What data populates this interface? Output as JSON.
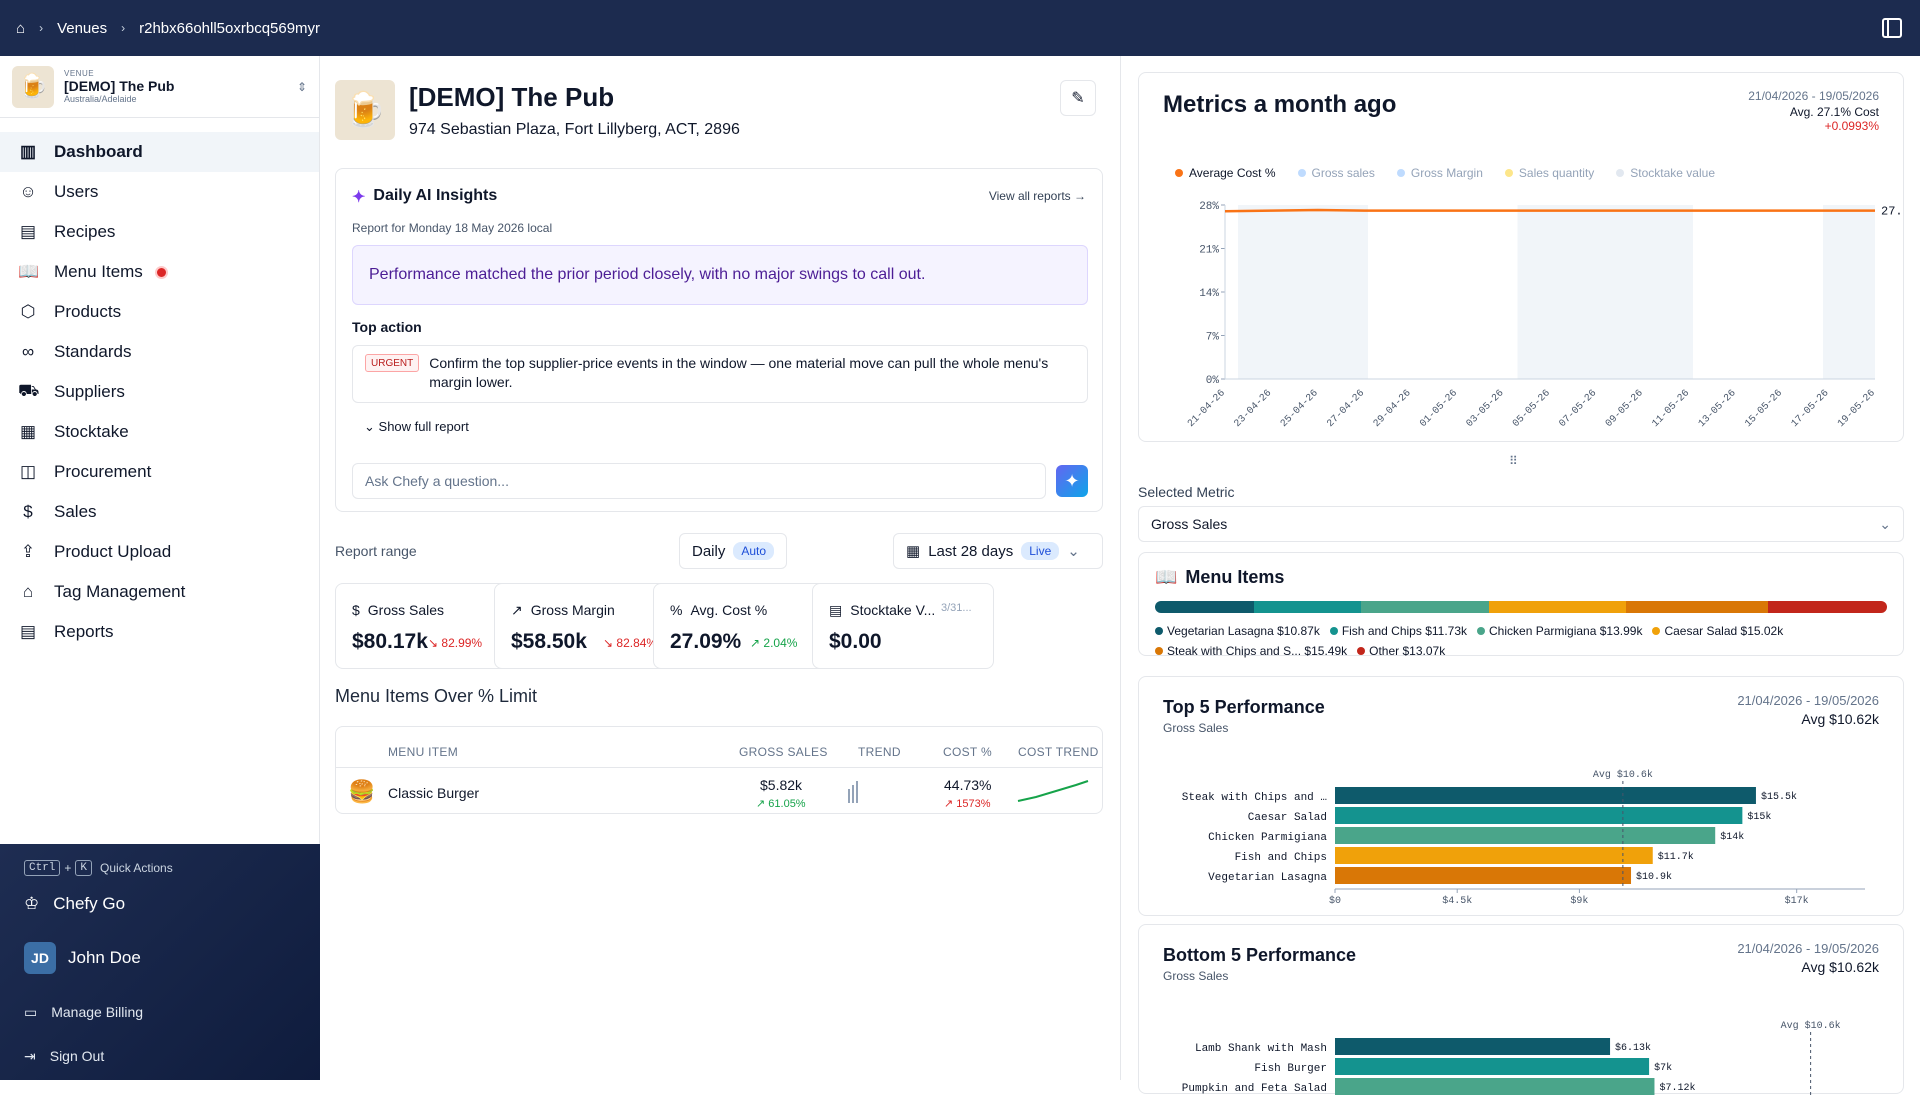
{
  "topbar": {
    "crumb_venues": "Venues",
    "crumb_id": "r2hbx66ohll5oxrbcq569myr"
  },
  "venue": {
    "label": "VENUE",
    "name": "[DEMO] The Pub",
    "location": "Australia/Adelaide"
  },
  "nav": [
    {
      "label": "Dashboard",
      "icon": "bar-chart-icon"
    },
    {
      "label": "Users",
      "icon": "user-icon"
    },
    {
      "label": "Recipes",
      "icon": "book-icon"
    },
    {
      "label": "Menu Items",
      "icon": "open-book-icon"
    },
    {
      "label": "Products",
      "icon": "box-icon"
    },
    {
      "label": "Standards",
      "icon": "link-icon"
    },
    {
      "label": "Suppliers",
      "icon": "truck-icon"
    },
    {
      "label": "Stocktake",
      "icon": "clipboard-icon"
    },
    {
      "label": "Procurement",
      "icon": "shopping-bag-icon"
    },
    {
      "label": "Sales",
      "icon": "dollar-icon"
    },
    {
      "label": "Product Upload",
      "icon": "file-upload-icon"
    },
    {
      "label": "Tag Management",
      "icon": "tag-icon"
    },
    {
      "label": "Reports",
      "icon": "report-icon"
    }
  ],
  "sidebar_bottom": {
    "kbd1": "Ctrl",
    "plus": "+",
    "kbd2": "K",
    "quick_actions": "Quick Actions",
    "chefy_go": "Chefy Go",
    "user_initials": "JD",
    "user_name": "John Doe",
    "billing": "Manage Billing",
    "signout": "Sign Out"
  },
  "header": {
    "title": "[DEMO] The Pub",
    "address": "974 Sebastian Plaza, Fort Lillyberg, ACT, 2896"
  },
  "ai": {
    "title": "Daily AI Insights",
    "view_all": "View all reports →",
    "report_for": "Report for Monday 18 May 2026 local",
    "summary": "Performance matched the prior period closely, with no major swings to call out.",
    "top_action_label": "Top action",
    "urgent": "URGENT",
    "action_text": "Confirm the top supplier-price events in the window — one material move can pull the whole menu's margin lower.",
    "show_full": "Show full report",
    "ask_placeholder": "Ask Chefy a question..."
  },
  "range": {
    "label": "Report range",
    "period": "Daily",
    "auto": "Auto",
    "range": "Last 28 days",
    "live": "Live"
  },
  "metrics": [
    {
      "icon": "$",
      "label": "Gross Sales",
      "value": "$80.17k",
      "change": "82.99%",
      "dir": "down"
    },
    {
      "icon": "↗",
      "label": "Gross Margin",
      "value": "$58.50k",
      "change": "82.84%",
      "dir": "down"
    },
    {
      "icon": "%",
      "label": "Avg. Cost %",
      "value": "27.09%",
      "change": "2.04%",
      "dir": "up"
    },
    {
      "icon": "▤",
      "label": "Stocktake V...",
      "value": "$0.00",
      "change": "3/31...",
      "dir": "none"
    }
  ],
  "over_limit": {
    "title": "Menu Items Over % Limit",
    "headers": [
      "MENU ITEM",
      "GROSS SALES",
      "TREND",
      "COST %",
      "COST TREND"
    ],
    "rows": [
      {
        "name": "Classic Burger",
        "sales": "$5.82k",
        "sales_change": "61.05%",
        "cost": "44.73%",
        "cost_change": "1573%"
      }
    ]
  },
  "month_ago": {
    "title": "Metrics a month ago",
    "date_range": "21/04/2026 - 19/05/2026",
    "avg": "Avg. 27.1% Cost",
    "delta": "+0.0993%",
    "legend": [
      "Average Cost %",
      "Gross sales",
      "Gross Margin",
      "Sales quantity",
      "Stocktake value"
    ],
    "end_label": "27."
  },
  "selected_metric": {
    "label": "Selected Metric",
    "value": "Gross Sales"
  },
  "menu_items": {
    "title": "Menu Items",
    "legend": [
      {
        "name": "Vegetarian Lasagna",
        "value": "$10.87k",
        "color": "#0e5a6b"
      },
      {
        "name": "Fish and Chips",
        "value": "$11.73k",
        "color": "#14938f"
      },
      {
        "name": "Chicken Parmigiana",
        "value": "$13.99k",
        "color": "#4aa58a"
      },
      {
        "name": "Caesar Salad",
        "value": "$15.02k",
        "color": "#f0a10a"
      },
      {
        "name": "Steak with Chips and S...",
        "value": "$15.49k",
        "color": "#d97706"
      },
      {
        "name": "Other",
        "value": "$13.07k",
        "color": "#c2261b"
      }
    ]
  },
  "top5": {
    "title": "Top 5 Performance",
    "sub": "Gross Sales",
    "date_range": "21/04/2026 - 19/05/2026",
    "avg": "Avg $10.62k",
    "avg_marker": "Avg $10.6k"
  },
  "bottom5": {
    "title": "Bottom 5 Performance",
    "sub": "Gross Sales",
    "date_range": "21/04/2026 - 19/05/2026",
    "avg": "Avg $10.62k",
    "avg_marker": "Avg $10.6k"
  },
  "chart_data": [
    {
      "type": "line",
      "title": "Metrics a month ago",
      "x": [
        "21-04-26",
        "23-04-26",
        "25-04-26",
        "27-04-26",
        "29-04-26",
        "01-05-26",
        "03-05-26",
        "05-05-26",
        "07-05-26",
        "09-05-26",
        "11-05-26",
        "13-05-26",
        "15-05-26",
        "17-05-26",
        "19-05-26"
      ],
      "y_ticks": [
        "0%",
        "7%",
        "14%",
        "21%",
        "28%"
      ],
      "ylim": [
        0,
        28
      ],
      "series": [
        {
          "name": "Average Cost %",
          "values": [
            27.0,
            27.1,
            27.2,
            27.1,
            27.1,
            27.1,
            27.1,
            27.1,
            27.1,
            27.1,
            27.1,
            27.1,
            27.1,
            27.1,
            27.1
          ]
        }
      ]
    },
    {
      "type": "bar",
      "title": "Top 5 Performance",
      "categories": [
        "Steak with Chips and …",
        "Caesar Salad",
        "Chicken Parmigiana",
        "Fish and Chips",
        "Vegetarian Lasagna"
      ],
      "values": [
        15.5,
        15,
        14,
        11.7,
        10.9
      ],
      "value_labels": [
        "$15.5k",
        "$15k",
        "$14k",
        "$11.7k",
        "$10.9k"
      ],
      "x_ticks": [
        "$0",
        "$4.5k",
        "$9k",
        "$17k"
      ],
      "xlim": [
        0,
        19
      ],
      "avg": 10.6
    },
    {
      "type": "bar",
      "title": "Bottom 5 Performance",
      "categories": [
        "Lamb Shank with Mash",
        "Fish Burger",
        "Pumpkin and Feta Salad"
      ],
      "values": [
        6.13,
        7,
        7.12
      ],
      "value_labels": [
        "$6.13k",
        "$7k",
        "$7.12k"
      ],
      "xlim": [
        0,
        11.5
      ],
      "avg": 10.6
    }
  ]
}
